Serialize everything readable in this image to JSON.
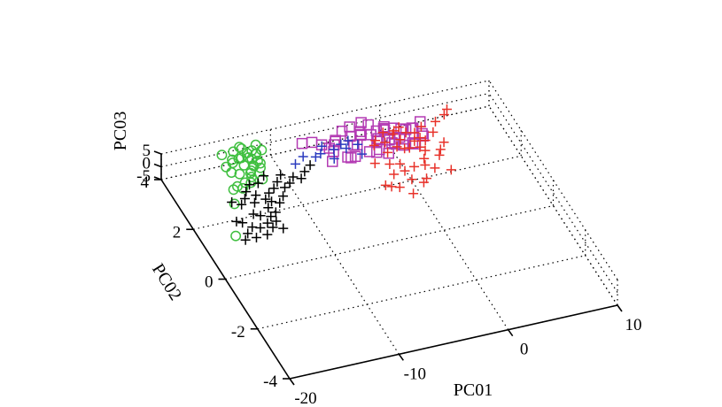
{
  "chart_data": {
    "type": "scatter",
    "projection": "3d",
    "grid": true,
    "title": "",
    "xlabel": "PC01",
    "ylabel": "PC02",
    "zlabel": "PC03",
    "xlim": [
      -20,
      10
    ],
    "ylim": [
      -4,
      4
    ],
    "zlim": [
      -5,
      5
    ],
    "xticks": [
      "-20",
      "-10",
      "0",
      "10"
    ],
    "yticks": [
      "-4",
      "-2",
      "0",
      "2",
      "4"
    ],
    "zticks": [
      "-5",
      "0",
      "5"
    ],
    "series": [
      {
        "marker": "square",
        "color": "#b33ab3",
        "points": [
          [
            -5.2,
            3.6,
            -3.0
          ],
          [
            -4.6,
            3.7,
            -3.2
          ],
          [
            -3.8,
            3.2,
            -4.2
          ],
          [
            -3.0,
            3.8,
            -2.4
          ],
          [
            -2.2,
            3.7,
            -1.8
          ],
          [
            -1.4,
            3.6,
            -1.4
          ],
          [
            -0.6,
            3.8,
            -2.6
          ],
          [
            0.2,
            3.9,
            -3.4
          ],
          [
            1.0,
            3.8,
            -3.0
          ],
          [
            1.8,
            3.6,
            -2.4
          ],
          [
            2.6,
            3.7,
            -3.6
          ],
          [
            -4.4,
            3.0,
            -1.4
          ],
          [
            -3.4,
            3.3,
            -0.6
          ],
          [
            -2.4,
            3.0,
            -1.2
          ],
          [
            -1.2,
            3.3,
            -0.2
          ],
          [
            -0.2,
            3.1,
            -0.8
          ],
          [
            0.8,
            3.3,
            -1.6
          ],
          [
            1.8,
            3.0,
            -2.2
          ],
          [
            2.8,
            3.2,
            -2.0
          ],
          [
            -1.8,
            2.8,
            1.0
          ],
          [
            -0.6,
            3.0,
            1.6
          ],
          [
            0.4,
            2.8,
            0.6
          ],
          [
            1.4,
            2.9,
            -0.4
          ],
          [
            -5.4,
            3.2,
            -0.2
          ],
          [
            -4.0,
            2.8,
            0.4
          ],
          [
            -2.6,
            3.4,
            1.8
          ],
          [
            -1.0,
            3.5,
            -3.4
          ],
          [
            0.6,
            3.5,
            -4.0
          ],
          [
            -6.2,
            3.4,
            1.2
          ],
          [
            -6.8,
            3.6,
            0.8
          ],
          [
            -3.2,
            3.7,
            2.4
          ],
          [
            -2.0,
            3.8,
            2.0
          ],
          [
            -0.2,
            3.6,
            0.6
          ],
          [
            1.2,
            3.5,
            -0.6
          ],
          [
            3.4,
            3.8,
            -2.8
          ],
          [
            -5.8,
            3.0,
            -1.8
          ],
          [
            -4.8,
            3.5,
            0.2
          ],
          [
            -3.6,
            3.9,
            -0.8
          ],
          [
            -2.8,
            3.5,
            -3.0
          ],
          [
            -1.6,
            3.1,
            -3.2
          ],
          [
            -0.8,
            2.9,
            -2.4
          ],
          [
            0.2,
            3.2,
            -2.6
          ],
          [
            1.4,
            3.4,
            -3.8
          ],
          [
            -7.4,
            3.8,
            -1.0
          ],
          [
            -4.2,
            3.9,
            -3.8
          ],
          [
            -2.4,
            3.6,
            0.8
          ],
          [
            -1.2,
            3.9,
            -0.6
          ],
          [
            0.0,
            3.7,
            -1.8
          ],
          [
            2.2,
            3.5,
            -1.2
          ],
          [
            3.0,
            3.4,
            -3.2
          ]
        ]
      },
      {
        "marker": "circle",
        "color": "#3fbf3f",
        "points": [
          [
            -15.5,
            2.5,
            -4.2
          ],
          [
            -14.5,
            3.0,
            -3.2
          ],
          [
            -13.8,
            3.0,
            -2.4
          ],
          [
            -13.0,
            3.2,
            -1.4
          ],
          [
            -12.3,
            3.6,
            -0.4
          ],
          [
            -12.0,
            3.8,
            0.6
          ],
          [
            -11.5,
            3.9,
            1.4
          ],
          [
            -12.6,
            3.7,
            1.2
          ],
          [
            -13.3,
            3.4,
            0.0
          ],
          [
            -14.0,
            3.2,
            -0.8
          ],
          [
            -12.8,
            3.3,
            -1.6
          ],
          [
            -11.9,
            3.5,
            -0.6
          ],
          [
            -13.5,
            3.6,
            0.8
          ],
          [
            -12.2,
            3.0,
            -2.6
          ],
          [
            -14.3,
            2.8,
            -2.2
          ],
          [
            -13.0,
            3.9,
            2.0
          ],
          [
            -11.8,
            3.7,
            0.2
          ],
          [
            -12.9,
            3.1,
            -3.2
          ],
          [
            -13.7,
            3.8,
            1.8
          ],
          [
            -12.4,
            3.4,
            -1.2
          ],
          [
            -14.8,
            3.5,
            -0.2
          ],
          [
            -11.6,
            3.8,
            -1.0
          ],
          [
            -13.2,
            3.0,
            -0.8
          ],
          [
            -12.6,
            3.6,
            0.4
          ],
          [
            -14.1,
            3.6,
            1.0
          ],
          [
            -13.4,
            2.9,
            -1.8
          ],
          [
            -12.1,
            3.2,
            1.6
          ],
          [
            -14.6,
            3.9,
            0.4
          ],
          [
            -12.8,
            3.9,
            1.2
          ],
          [
            -11.4,
            3.6,
            2.2
          ],
          [
            -15.0,
            2.9,
            -3.0
          ],
          [
            -13.9,
            3.7,
            -1.4
          ],
          [
            -12.3,
            3.5,
            -2.0
          ],
          [
            -14.6,
            3.3,
            -0.6
          ],
          [
            -13.1,
            3.7,
            -0.2
          ],
          [
            -11.8,
            3.4,
            -2.4
          ],
          [
            -17.0,
            1.4,
            -4.6
          ]
        ]
      },
      {
        "marker": "plus",
        "color": "#000000",
        "points": [
          [
            -15.6,
            2.6,
            -4.4
          ],
          [
            -15.0,
            2.4,
            -4.0
          ],
          [
            -14.4,
            2.6,
            -4.2
          ],
          [
            -13.8,
            2.4,
            -4.4
          ],
          [
            -14.5,
            2.0,
            -4.3
          ],
          [
            -14.0,
            1.9,
            -4.4
          ],
          [
            -13.2,
            1.8,
            -4.5
          ],
          [
            -12.6,
            1.9,
            -4.4
          ],
          [
            -13.0,
            2.1,
            -4.2
          ],
          [
            -12.4,
            2.3,
            -4.3
          ],
          [
            -11.8,
            2.2,
            -4.4
          ],
          [
            -11.2,
            2.4,
            -4.3
          ],
          [
            -10.6,
            2.7,
            -4.4
          ],
          [
            -10.0,
            2.8,
            -4.3
          ],
          [
            -9.4,
            3.0,
            -4.4
          ],
          [
            -8.8,
            2.9,
            -4.6
          ],
          [
            -8.2,
            3.1,
            -4.4
          ],
          [
            -7.4,
            3.3,
            -4.6
          ],
          [
            -12.8,
            2.4,
            -4.0
          ],
          [
            -12.2,
            2.6,
            -4.1
          ],
          [
            -11.6,
            2.7,
            -3.8
          ],
          [
            -11.0,
            2.9,
            -3.8
          ],
          [
            -10.4,
            3.1,
            -3.6
          ],
          [
            -13.4,
            2.6,
            -3.8
          ],
          [
            -13.8,
            1.6,
            -4.6
          ],
          [
            -14.6,
            1.5,
            -4.7
          ],
          [
            -15.2,
            1.6,
            -4.8
          ],
          [
            -15.8,
            1.8,
            -4.5
          ],
          [
            -16.2,
            1.9,
            -4.6
          ],
          [
            -15.9,
            1.4,
            -4.7
          ],
          [
            -16.4,
            1.2,
            -4.8
          ],
          [
            -15.4,
            1.2,
            -4.8
          ],
          [
            -14.4,
            1.2,
            -4.6
          ],
          [
            -13.6,
            1.4,
            -4.5
          ],
          [
            -12.8,
            1.3,
            -4.7
          ],
          [
            -13.0,
            1.6,
            -4.6
          ],
          [
            -14.0,
            2.8,
            -3.8
          ],
          [
            -13.4,
            3.0,
            -3.6
          ],
          [
            -12.6,
            3.0,
            -3.8
          ],
          [
            -11.8,
            3.2,
            -3.6
          ]
        ]
      },
      {
        "marker": "plus",
        "color": "#2b3bbf",
        "points": [
          [
            -8.6,
            3.4,
            -4.0
          ],
          [
            -7.6,
            3.6,
            -4.0
          ],
          [
            -6.6,
            3.5,
            -4.1
          ],
          [
            -5.6,
            3.8,
            -3.8
          ],
          [
            -4.8,
            3.6,
            -3.9
          ],
          [
            -4.0,
            3.7,
            -3.6
          ],
          [
            -3.2,
            3.8,
            -3.9
          ],
          [
            -2.6,
            3.6,
            -4.0
          ],
          [
            -5.2,
            3.3,
            -4.2
          ],
          [
            -6.0,
            3.6,
            -4.4
          ],
          [
            -3.8,
            3.5,
            -3.4
          ],
          [
            -2.8,
            3.2,
            -3.7
          ]
        ]
      },
      {
        "marker": "plus",
        "color": "#e8322a",
        "points": [
          [
            -1.0,
            3.6,
            -4.0
          ],
          [
            0.0,
            3.8,
            -3.8
          ],
          [
            1.0,
            3.8,
            -4.1
          ],
          [
            1.8,
            3.6,
            -3.6
          ],
          [
            -0.6,
            3.1,
            -4.2
          ],
          [
            0.4,
            3.2,
            -3.9
          ],
          [
            1.4,
            3.1,
            -4.3
          ],
          [
            2.2,
            3.0,
            -3.8
          ],
          [
            3.0,
            3.2,
            -3.9
          ],
          [
            4.0,
            3.4,
            -3.6
          ],
          [
            -1.4,
            3.4,
            -3.6
          ],
          [
            0.8,
            3.0,
            -3.0
          ],
          [
            2.0,
            3.2,
            -3.2
          ],
          [
            3.2,
            3.6,
            -2.6
          ],
          [
            -0.2,
            2.6,
            -4.2
          ],
          [
            0.8,
            2.4,
            -4.3
          ],
          [
            2.0,
            2.6,
            -4.2
          ],
          [
            3.4,
            2.6,
            -4.2
          ],
          [
            -1.2,
            2.3,
            -4.4
          ],
          [
            0.0,
            2.0,
            -4.6
          ],
          [
            1.2,
            1.9,
            -4.4
          ],
          [
            2.4,
            2.2,
            -4.4
          ],
          [
            3.6,
            2.0,
            -4.3
          ],
          [
            -2.4,
            2.0,
            -4.6
          ],
          [
            -1.4,
            1.8,
            -4.4
          ],
          [
            -0.6,
            1.5,
            -4.7
          ],
          [
            0.8,
            1.8,
            -4.6
          ],
          [
            2.6,
            3.6,
            -4.4
          ],
          [
            4.4,
            3.0,
            -4.0
          ],
          [
            1.6,
            3.9,
            -4.2
          ],
          [
            -2.2,
            2.8,
            -4.0
          ],
          [
            -0.4,
            3.4,
            -3.4
          ],
          [
            0.6,
            3.6,
            -3.0
          ],
          [
            4.8,
            3.8,
            -4.1
          ],
          [
            6.0,
            3.9,
            -1.4
          ],
          [
            5.6,
            3.8,
            -2.2
          ],
          [
            -2.0,
            1.9,
            -4.5
          ],
          [
            1.8,
            2.4,
            -4.6
          ],
          [
            2.8,
            3.4,
            -4.6
          ],
          [
            3.8,
            2.8,
            -4.3
          ],
          [
            -0.2,
            2.3,
            -4.0
          ],
          [
            1.0,
            3.4,
            -3.6
          ],
          [
            2.4,
            2.8,
            -3.4
          ],
          [
            -1.0,
            2.7,
            -4.5
          ]
        ]
      }
    ]
  }
}
